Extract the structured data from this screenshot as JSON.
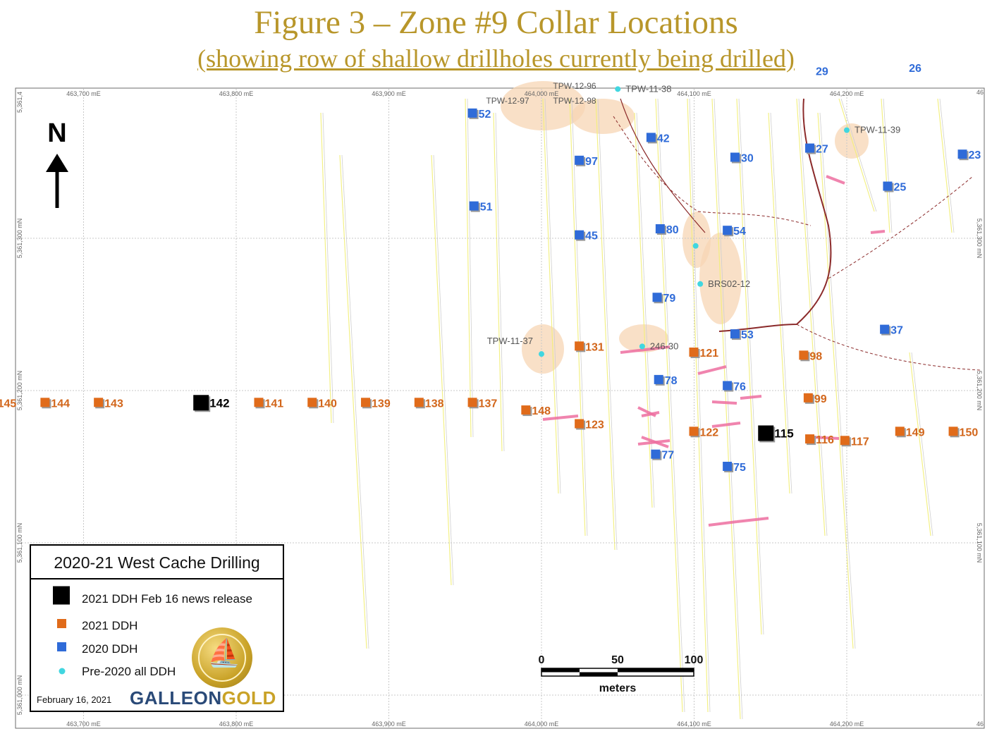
{
  "header": {
    "title": "Figure 3 – Zone #9 Collar Locations",
    "subtitle": "(showing row of shallow drillholes currently being drilled)"
  },
  "colors": {
    "title": "#b8962a",
    "ddh_2021_release": "#000000",
    "ddh_2021": "#e06b1a",
    "ddh_2020": "#2f6bd8",
    "pre_2020": "#41d6e0",
    "label_2021": "#d2661b",
    "label_2020": "#2f6bd8",
    "label_pre": "#555555",
    "shading": "#f7d6b4",
    "intercept": "#ee6fa0",
    "trace": "#f2ef7a",
    "road": "#8b2a2a",
    "grid": "#c8c8c8"
  },
  "map": {
    "easting_ticks_top": [
      "463,700 mE",
      "463,800 mE",
      "463,900 mE",
      "464,000 mE",
      "464,100 mE",
      "464,200 mE"
    ],
    "easting_ticks_bottom": [
      "463,700 mE",
      "463,800 mE",
      "463,900 mE",
      "464,000 mE",
      "464,100 mE",
      "464,200 mE"
    ],
    "northing_ticks_left": [
      "5,361,4",
      "5,361,300 mN",
      "5,361,200 mN",
      "5,361,100 mN",
      "5,361,000 mN"
    ],
    "northing_ticks_right": [
      "5,361,300 mN",
      "5,361,200 mN",
      "5,361,100 mN"
    ],
    "corner_labels": [
      "46",
      "46"
    ],
    "north_arrow": "N",
    "scale_bar": {
      "ticks": [
        "0",
        "50",
        "100"
      ],
      "unit": "meters"
    },
    "holes_2021_release": [
      {
        "label": "142",
        "x": 463777,
        "y": 5361192
      },
      {
        "label": "115",
        "x": 464147,
        "y": 5361172
      }
    ],
    "holes_2021": [
      {
        "label": "145",
        "x": 463640,
        "y": 5361192
      },
      {
        "label": "144",
        "x": 463675,
        "y": 5361192
      },
      {
        "label": "143",
        "x": 463710,
        "y": 5361192
      },
      {
        "label": "141",
        "x": 463815,
        "y": 5361192
      },
      {
        "label": "140",
        "x": 463850,
        "y": 5361192
      },
      {
        "label": "139",
        "x": 463885,
        "y": 5361192
      },
      {
        "label": "138",
        "x": 463920,
        "y": 5361192
      },
      {
        "label": "137",
        "x": 463955,
        "y": 5361192
      },
      {
        "label": "148",
        "x": 463990,
        "y": 5361187
      },
      {
        "label": "131",
        "x": 464025,
        "y": 5361229
      },
      {
        "label": "123",
        "x": 464025,
        "y": 5361178
      },
      {
        "label": "121",
        "x": 464100,
        "y": 5361225
      },
      {
        "label": "122",
        "x": 464100,
        "y": 5361173
      },
      {
        "label": "98",
        "x": 464172,
        "y": 5361223
      },
      {
        "label": "99",
        "x": 464175,
        "y": 5361195
      },
      {
        "label": "116",
        "x": 464176,
        "y": 5361168
      },
      {
        "label": "117",
        "x": 464199,
        "y": 5361167
      },
      {
        "label": "149",
        "x": 464235,
        "y": 5361173
      },
      {
        "label": "150",
        "x": 464270,
        "y": 5361173
      }
    ],
    "holes_2020": [
      {
        "label": "52",
        "x": 463955,
        "y": 5361382
      },
      {
        "label": "51",
        "x": 463956,
        "y": 5361321
      },
      {
        "label": "97",
        "x": 464025,
        "y": 5361351
      },
      {
        "label": "45",
        "x": 464025,
        "y": 5361302
      },
      {
        "label": "42",
        "x": 464072,
        "y": 5361366
      },
      {
        "label": "30",
        "x": 464127,
        "y": 5361353
      },
      {
        "label": "27",
        "x": 464176,
        "y": 5361359
      },
      {
        "label": "80",
        "x": 464078,
        "y": 5361306
      },
      {
        "label": "54",
        "x": 464122,
        "y": 5361305
      },
      {
        "label": "79",
        "x": 464076,
        "y": 5361261
      },
      {
        "label": "53",
        "x": 464127,
        "y": 5361237
      },
      {
        "label": "37",
        "x": 464225,
        "y": 5361240
      },
      {
        "label": "25",
        "x": 464227,
        "y": 5361334
      },
      {
        "label": "23",
        "x": 464276,
        "y": 5361355
      },
      {
        "label": "78",
        "x": 464077,
        "y": 5361207
      },
      {
        "label": "76",
        "x": 464122,
        "y": 5361203
      },
      {
        "label": "77",
        "x": 464075,
        "y": 5361158
      },
      {
        "label": "75",
        "x": 464122,
        "y": 5361150
      },
      {
        "label": "29",
        "x": 464176,
        "y": 5361410
      },
      {
        "label": "26",
        "x": 464237,
        "y": 5361412
      }
    ],
    "holes_pre2020": [
      {
        "label": "TPW-11-38",
        "x": 464050,
        "y": 5361398
      },
      {
        "label": "TPW-11-39",
        "x": 464200,
        "y": 5361371
      },
      {
        "label": "BRS02-12",
        "x": 464104,
        "y": 5361270
      },
      {
        "label": "TPW-11-37",
        "x": 464000,
        "y": 5361224
      },
      {
        "label": "246-30",
        "x": 464066,
        "y": 5361229
      },
      {
        "label": "",
        "x": 464101,
        "y": 5361295
      }
    ],
    "cut_labels": [
      "TPW-12-97",
      "TPW-12-98",
      "TPW-12-96"
    ]
  },
  "legend": {
    "title": "2020-21 West Cache Drilling",
    "items": [
      {
        "label": "2021 DDH Feb 16 news release",
        "symbol": "black-square"
      },
      {
        "label": "2021 DDH",
        "symbol": "orange-square"
      },
      {
        "label": "2020 DDH",
        "symbol": "blue-square"
      },
      {
        "label": "Pre-2020 all DDH",
        "symbol": "cyan-dot"
      }
    ],
    "date": "February 16, 2021",
    "brand_part1": "GALLEON",
    "brand_part2": "GOLD"
  }
}
